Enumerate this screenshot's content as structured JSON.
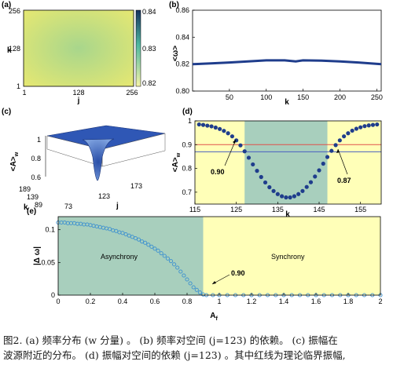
{
  "panels": {
    "a": {
      "label": "(a)",
      "ylabel": "k",
      "xlabel": "j",
      "yticks": [
        "256",
        "128",
        "1"
      ],
      "xticks": [
        "1",
        "128",
        "256"
      ],
      "colorbar_ticks": [
        "0.84",
        "0.83",
        "0.82"
      ],
      "colors": {
        "edge": "#e6e872",
        "center": "#a8d68c",
        "bar_top": "#15305e",
        "bar_mid": "#4fb7a0",
        "bar_bottom": "#f6f4a8"
      }
    },
    "b": {
      "label": "(b)",
      "ylabel": "<ω>",
      "xlabel": "k",
      "yticks": [
        "0.86",
        "0.84",
        "0.82",
        "0.80"
      ],
      "xticks": [
        "50",
        "100",
        "150",
        "200",
        "250"
      ]
    },
    "c": {
      "label": "(c)",
      "zlabel": "<A>",
      "zlabel_sub": "w",
      "zticks": [
        "1",
        "0.8",
        "0.6"
      ],
      "kticks": [
        "189",
        "139",
        "89"
      ],
      "jticks": [
        "73",
        "123",
        "173"
      ],
      "klabel": "k",
      "jlabel": "j"
    },
    "d": {
      "label": "(d)",
      "ylabel": "<A>",
      "ylabel_sub": "w",
      "xlabel": "k",
      "yticks": [
        "1",
        "0.9",
        "0.8",
        "0.7"
      ],
      "xticks": [
        "115",
        "125",
        "135",
        "145",
        "155"
      ],
      "annotation_left": "0.90",
      "annotation_right": "0.87"
    },
    "e": {
      "label": "(e)",
      "ylabel": "|Δ ω|",
      "xlabel": "A",
      "xlabel_sub": "f",
      "yticks": [
        "0.1",
        "0.05",
        "0"
      ],
      "xticks": [
        "0",
        "0.2",
        "0.4",
        "0.6",
        "0.8",
        "1",
        "1.2",
        "1.4",
        "1.6",
        "1.8",
        "2"
      ],
      "region_left": "Asynchrony",
      "region_right": "Synchrony",
      "annotation": "0.90"
    }
  },
  "chart_data": [
    {
      "panel": "a",
      "type": "heatmap",
      "xlabel": "j",
      "ylabel": "k",
      "xlim": [
        1,
        256
      ],
      "ylim": [
        1,
        256
      ],
      "colorbar_range": [
        0.82,
        0.84
      ]
    },
    {
      "panel": "b",
      "type": "line",
      "xlabel": "k",
      "ylabel": "<ω>",
      "xlim": [
        0,
        256
      ],
      "ylim": [
        0.8,
        0.86
      ],
      "x": [
        0,
        25,
        50,
        75,
        100,
        125,
        140,
        150,
        175,
        200,
        225,
        256
      ],
      "y": [
        0.82,
        0.8205,
        0.8212,
        0.822,
        0.8228,
        0.8228,
        0.822,
        0.8228,
        0.8226,
        0.822,
        0.8212,
        0.82
      ],
      "line_color": "#1f3d8c"
    },
    {
      "panel": "d",
      "type": "scatter",
      "xlabel": "k",
      "ylabel": "<A>w",
      "xlim": [
        115,
        160
      ],
      "ylim": [
        0.65,
        1.0
      ],
      "x": [
        116,
        117,
        118,
        119,
        120,
        121,
        122,
        123,
        124,
        125,
        126,
        127,
        128,
        129,
        130,
        131,
        132,
        133,
        134,
        135,
        136,
        137,
        138,
        139,
        140,
        141,
        142,
        143,
        144,
        145,
        146,
        147,
        148,
        149,
        150,
        151,
        152,
        153,
        154,
        155,
        156,
        157,
        158,
        159
      ],
      "y": [
        0.985,
        0.983,
        0.98,
        0.977,
        0.972,
        0.966,
        0.958,
        0.948,
        0.935,
        0.918,
        0.897,
        0.872,
        0.845,
        0.817,
        0.79,
        0.764,
        0.741,
        0.721,
        0.705,
        0.692,
        0.683,
        0.678,
        0.678,
        0.683,
        0.692,
        0.705,
        0.722,
        0.742,
        0.766,
        0.792,
        0.82,
        0.848,
        0.874,
        0.898,
        0.918,
        0.935,
        0.948,
        0.959,
        0.967,
        0.973,
        0.978,
        0.981,
        0.983,
        0.985
      ],
      "hlines": [
        {
          "y": 0.9,
          "color": "#e0504a"
        },
        {
          "y": 0.87,
          "color": "#4a5fc0"
        }
      ],
      "region": {
        "from": 127,
        "to": 147
      },
      "colors": {
        "outer": "#ffffb8",
        "inner": "#a8cfbd",
        "points": "#1f3d8c"
      }
    },
    {
      "panel": "e",
      "type": "scatter",
      "xlabel": "Af",
      "ylabel": "|Δ ω|",
      "xlim": [
        0,
        2
      ],
      "ylim": [
        0,
        0.12
      ],
      "x": [
        0,
        0.02,
        0.04,
        0.06,
        0.08,
        0.1,
        0.12,
        0.14,
        0.16,
        0.18,
        0.2,
        0.22,
        0.24,
        0.26,
        0.28,
        0.3,
        0.32,
        0.34,
        0.36,
        0.38,
        0.4,
        0.42,
        0.44,
        0.46,
        0.48,
        0.5,
        0.52,
        0.54,
        0.56,
        0.58,
        0.6,
        0.62,
        0.64,
        0.66,
        0.68,
        0.7,
        0.72,
        0.74,
        0.76,
        0.78,
        0.8,
        0.82,
        0.84,
        0.86,
        0.88,
        0.9,
        0.92,
        0.96,
        1.0,
        1.05,
        1.1,
        1.15,
        1.2,
        1.25,
        1.3,
        1.35,
        1.4,
        1.45,
        1.5,
        1.55,
        1.6,
        1.65,
        1.7,
        1.75,
        1.8,
        1.85,
        1.9,
        1.95,
        2.0
      ],
      "y": [
        0.111,
        0.111,
        0.111,
        0.11,
        0.11,
        0.11,
        0.109,
        0.109,
        0.108,
        0.108,
        0.107,
        0.106,
        0.105,
        0.104,
        0.103,
        0.102,
        0.101,
        0.099,
        0.098,
        0.096,
        0.095,
        0.093,
        0.091,
        0.089,
        0.087,
        0.085,
        0.082,
        0.08,
        0.077,
        0.074,
        0.071,
        0.068,
        0.064,
        0.06,
        0.056,
        0.052,
        0.047,
        0.042,
        0.036,
        0.03,
        0.024,
        0.018,
        0.012,
        0.008,
        0.004,
        0.001,
        0,
        0,
        0,
        0,
        0,
        0,
        0,
        0,
        0,
        0,
        0,
        0,
        0,
        0,
        0,
        0,
        0,
        0,
        0,
        0,
        0,
        0,
        0
      ],
      "threshold": 0.9,
      "colors": {
        "left": "#a8cfbd",
        "right": "#ffffb8",
        "points": "#3a8fd0"
      }
    }
  ],
  "caption": {
    "line1": "图2. (a) 频率分布 (w 分量) 。 (b) 频率对空间 (j=123) 的依赖。 (c) 振幅在",
    "line2": "波源附近的分布。 (d) 振幅对空间的依赖 (j=123) 。其中红线为理论临界振幅,"
  }
}
